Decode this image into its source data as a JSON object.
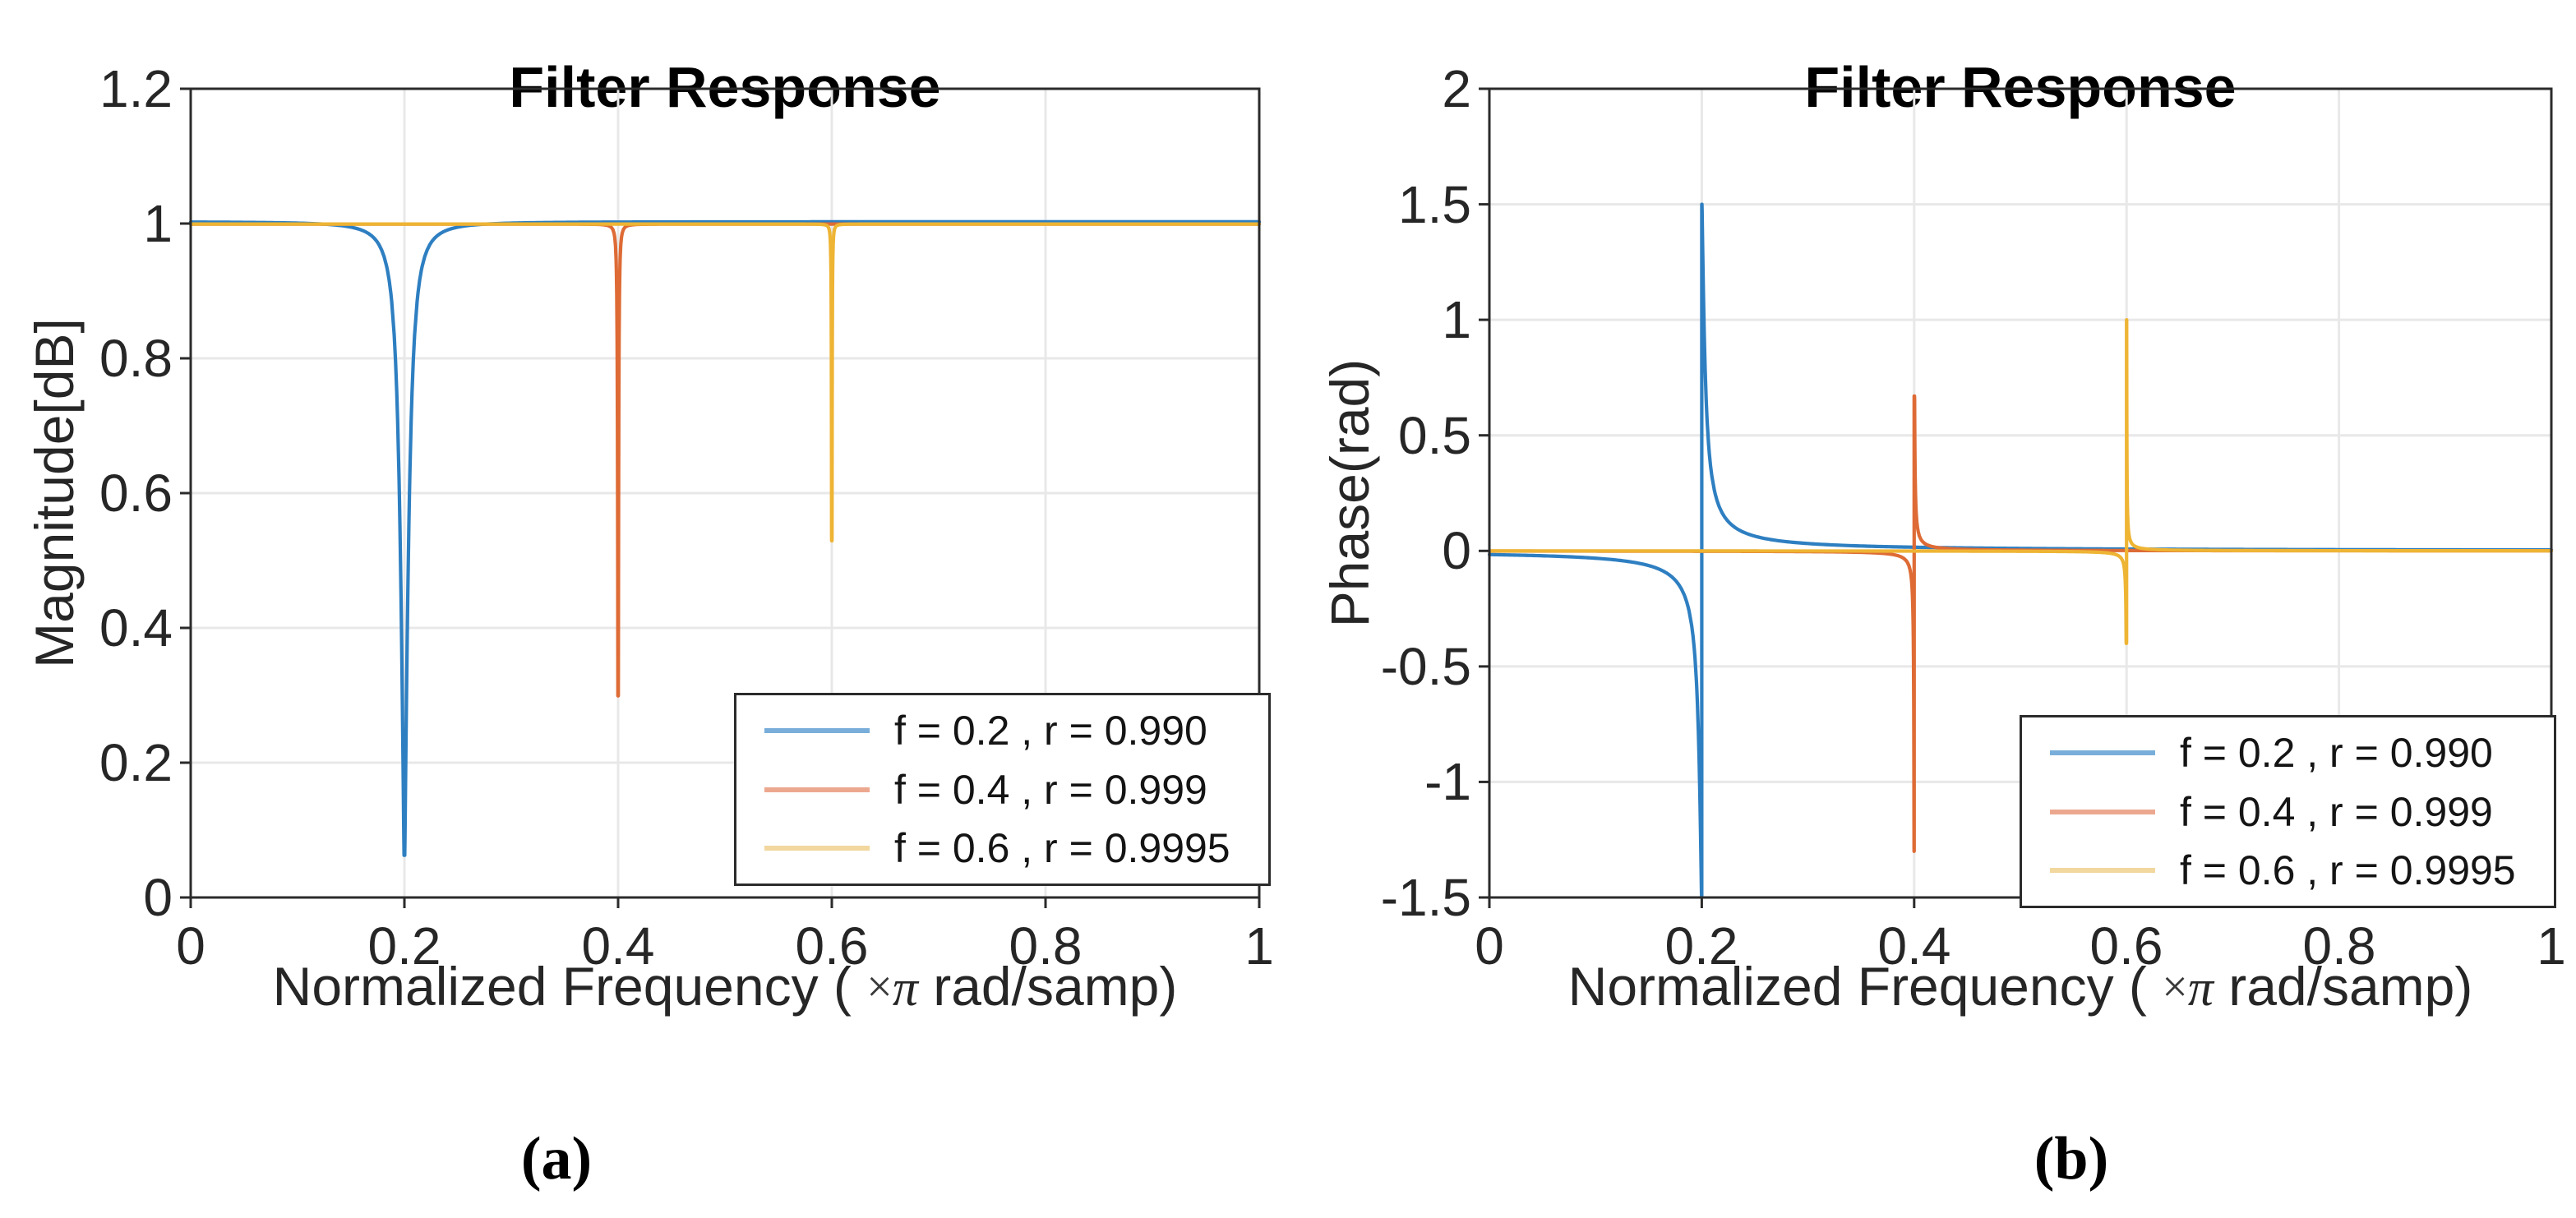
{
  "plot_a": {
    "title": "Filter Response",
    "ylabel": "Magnitude[dB]",
    "xlabel": {
      "pre": "Normalized Frequency ( ",
      "times": "×",
      "pi": "π",
      "post": " rad/samp)"
    },
    "caption": "(a)"
  },
  "plot_b": {
    "title": "Filter Response",
    "ylabel": "Phase(rad)",
    "xlabel": {
      "pre": "Normalized Frequency ( ",
      "times": "×",
      "pi": "π",
      "post": " rad/samp)"
    },
    "caption": "(b)"
  },
  "legend": {
    "items": [
      {
        "label": "f = 0.2 , r = 0.990",
        "swatch": "#79aeda"
      },
      {
        "label": "f = 0.4 , r = 0.999",
        "swatch": "#eca88f"
      },
      {
        "label": "f = 0.6 , r = 0.9995",
        "swatch": "#f2d79e"
      }
    ]
  },
  "colors": {
    "series_blue": "#2e7fc1",
    "series_orange": "#de6b35",
    "series_yellow": "#eeb434",
    "grid": "#e8e8e8",
    "axis": "#2b2b2b",
    "text": "#262626"
  },
  "chart_data": [
    {
      "id": "a",
      "type": "line",
      "signal": "magnitude",
      "title": "Filter Response",
      "xlabel": "Normalized Frequency ( ×π rad/samp)",
      "ylabel": "Magnitude[dB]",
      "xlim": [
        0,
        1
      ],
      "ylim": [
        0,
        1.2
      ],
      "xticks": [
        0,
        0.2,
        0.4,
        0.6,
        0.8,
        1
      ],
      "xtick_labels": [
        "0",
        "0.2",
        "0.4",
        "0.6",
        "0.8",
        "1"
      ],
      "yticks": [
        0,
        0.2,
        0.4,
        0.6,
        0.8,
        1,
        1.2
      ],
      "ytick_labels": [
        "0",
        "0.2",
        "0.4",
        "0.6",
        "0.8",
        "1",
        "1.2"
      ],
      "grid": true,
      "legend_position": "inside lower right",
      "series": [
        {
          "name": "f = 0.2 , r = 0.990",
          "notch_freq": 0.2,
          "pole_radius": 0.99,
          "passband_level": 1.0,
          "drawn_notch_min": 0.06,
          "color": "#2e7fc1"
        },
        {
          "name": "f = 0.4 , r = 0.999",
          "notch_freq": 0.4,
          "pole_radius": 0.999,
          "passband_level": 1.0,
          "drawn_notch_min": 0.3,
          "color": "#de6b35"
        },
        {
          "name": "f = 0.6 , r = 0.9995",
          "notch_freq": 0.6,
          "pole_radius": 0.9995,
          "passband_level": 1.0,
          "drawn_notch_min": 0.53,
          "color": "#eeb434"
        }
      ]
    },
    {
      "id": "b",
      "type": "line",
      "signal": "phase",
      "title": "Filter Response",
      "xlabel": "Normalized Frequency ( ×π rad/samp)",
      "ylabel": "Phase(rad)",
      "xlim": [
        0,
        1
      ],
      "ylim": [
        -1.5,
        2
      ],
      "xticks": [
        0,
        0.2,
        0.4,
        0.6,
        0.8,
        1
      ],
      "xtick_labels": [
        "0",
        "0.2",
        "0.4",
        "0.6",
        "0.8",
        "1"
      ],
      "yticks": [
        -1.5,
        -1,
        -0.5,
        0,
        0.5,
        1,
        1.5,
        2
      ],
      "ytick_labels": [
        "-1.5",
        "-1",
        "-0.5",
        "0",
        "0.5",
        "1",
        "1.5",
        "2"
      ],
      "grid": true,
      "legend_position": "inside lower right overlapping axis",
      "series": [
        {
          "name": "f = 0.2 , r = 0.990",
          "notch_freq": 0.2,
          "pole_radius": 0.99,
          "baseline": 0,
          "drawn_peak_pos": 1.5,
          "drawn_peak_neg": -1.5,
          "color": "#2e7fc1"
        },
        {
          "name": "f = 0.4 , r = 0.999",
          "notch_freq": 0.4,
          "pole_radius": 0.999,
          "baseline": 0,
          "drawn_peak_pos": 0.67,
          "drawn_peak_neg": -1.3,
          "color": "#de6b35"
        },
        {
          "name": "f = 0.6 , r = 0.9995",
          "notch_freq": 0.6,
          "pole_radius": 0.9995,
          "baseline": 0,
          "drawn_peak_pos": 1.0,
          "drawn_peak_neg": -0.4,
          "color": "#eeb434"
        }
      ]
    }
  ]
}
